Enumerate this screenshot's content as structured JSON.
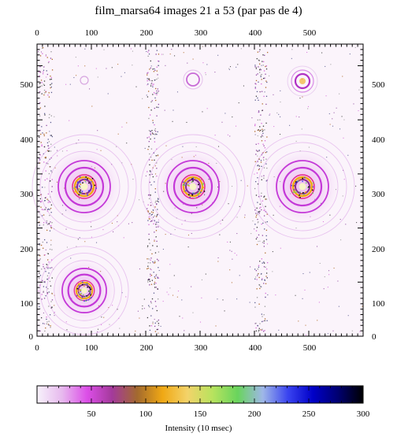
{
  "title": "film_marsa64 images 21 a 53 (par pas de 4)",
  "colorbar": {
    "label": "Intensity (10 msec)",
    "ticks": [
      "50",
      "100",
      "150",
      "200",
      "250",
      "300"
    ],
    "min": 0,
    "max": 300,
    "stops": [
      "#f7f2fb",
      "#e7b9ee",
      "#dc4ee8",
      "#a33a9a",
      "#a36a2e",
      "#f0a814",
      "#f3d36a",
      "#b7e35e",
      "#69d45d",
      "#9fb7e8",
      "#3a44f0",
      "#0000c8",
      "#000070",
      "#000000"
    ]
  },
  "axes": {
    "x_ticks": [
      "0",
      "100",
      "200",
      "300",
      "400",
      "500"
    ],
    "y_ticks_left": [
      "500",
      "400",
      "300",
      "200",
      "100",
      "0"
    ],
    "y_ticks_right": [
      "500",
      "400",
      "300",
      "200",
      "100",
      "0"
    ]
  },
  "map": {
    "background": "#fbf4fb"
  }
}
